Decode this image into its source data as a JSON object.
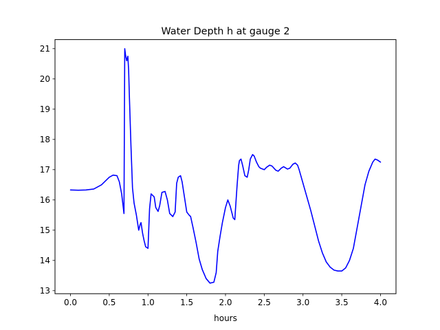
{
  "chart_data": {
    "type": "line",
    "title": "Water Depth h at gauge 2",
    "xlabel": "hours",
    "ylabel": "",
    "xlim": [
      -0.2,
      4.2
    ],
    "ylim": [
      12.9,
      21.3
    ],
    "xticks": [
      0.0,
      0.5,
      1.0,
      1.5,
      2.0,
      2.5,
      3.0,
      3.5,
      4.0
    ],
    "xtick_labels": [
      "0.0",
      "0.5",
      "1.0",
      "1.5",
      "2.0",
      "2.5",
      "3.0",
      "3.5",
      "4.0"
    ],
    "yticks": [
      13,
      14,
      15,
      16,
      17,
      18,
      19,
      20,
      21
    ],
    "ytick_labels": [
      "13",
      "14",
      "15",
      "16",
      "17",
      "18",
      "19",
      "20",
      "21"
    ],
    "grid": false,
    "series": [
      {
        "color": "#0000ff",
        "x": [
          0.0,
          0.1,
          0.2,
          0.3,
          0.4,
          0.5,
          0.55,
          0.6,
          0.63,
          0.66,
          0.69,
          0.7,
          0.71,
          0.725,
          0.74,
          0.75,
          0.76,
          0.78,
          0.8,
          0.82,
          0.85,
          0.88,
          0.9,
          0.91,
          0.93,
          0.95,
          0.97,
          1.0,
          1.02,
          1.04,
          1.06,
          1.08,
          1.1,
          1.13,
          1.15,
          1.18,
          1.22,
          1.25,
          1.28,
          1.32,
          1.35,
          1.37,
          1.39,
          1.42,
          1.44,
          1.47,
          1.5,
          1.53,
          1.55,
          1.58,
          1.62,
          1.66,
          1.7,
          1.75,
          1.8,
          1.85,
          1.88,
          1.9,
          1.93,
          1.96,
          2.0,
          2.03,
          2.06,
          2.08,
          2.1,
          2.12,
          2.15,
          2.17,
          2.18,
          2.2,
          2.22,
          2.25,
          2.28,
          2.3,
          2.32,
          2.35,
          2.37,
          2.4,
          2.43,
          2.45,
          2.5,
          2.53,
          2.57,
          2.6,
          2.65,
          2.68,
          2.72,
          2.75,
          2.8,
          2.83,
          2.87,
          2.9,
          2.93,
          2.95,
          3.0,
          3.05,
          3.1,
          3.15,
          3.2,
          3.25,
          3.3,
          3.35,
          3.4,
          3.45,
          3.5,
          3.55,
          3.6,
          3.65,
          3.7,
          3.75,
          3.8,
          3.85,
          3.9,
          3.93,
          3.96,
          4.0
        ],
        "y": [
          16.33,
          16.32,
          16.33,
          16.36,
          16.5,
          16.75,
          16.82,
          16.8,
          16.6,
          16.2,
          15.55,
          21.0,
          20.8,
          20.6,
          20.75,
          20.3,
          19.4,
          17.8,
          16.4,
          15.9,
          15.5,
          15.0,
          15.2,
          15.25,
          14.9,
          14.65,
          14.45,
          14.4,
          15.7,
          16.2,
          16.15,
          16.1,
          15.75,
          15.62,
          15.8,
          16.25,
          16.28,
          16.0,
          15.55,
          15.45,
          15.6,
          16.55,
          16.75,
          16.8,
          16.6,
          16.1,
          15.6,
          15.5,
          15.45,
          15.1,
          14.6,
          14.05,
          13.7,
          13.4,
          13.25,
          13.28,
          13.6,
          14.3,
          14.8,
          15.25,
          15.75,
          16.0,
          15.8,
          15.6,
          15.4,
          15.35,
          16.5,
          17.15,
          17.3,
          17.35,
          17.15,
          16.8,
          16.75,
          17.0,
          17.35,
          17.5,
          17.45,
          17.25,
          17.1,
          17.05,
          17.0,
          17.08,
          17.15,
          17.12,
          16.98,
          16.95,
          17.05,
          17.1,
          17.02,
          17.05,
          17.18,
          17.22,
          17.15,
          17.0,
          16.55,
          16.1,
          15.65,
          15.15,
          14.65,
          14.25,
          13.95,
          13.78,
          13.68,
          13.65,
          13.65,
          13.75,
          14.0,
          14.4,
          15.1,
          15.8,
          16.5,
          16.95,
          17.25,
          17.35,
          17.32,
          17.25
        ]
      }
    ]
  }
}
